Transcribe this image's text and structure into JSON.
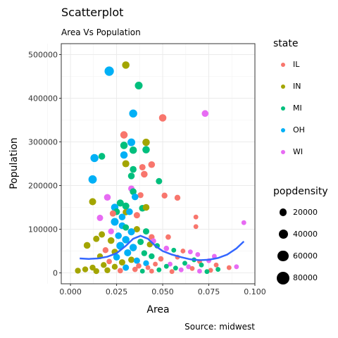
{
  "chart_data": {
    "type": "scatter",
    "title": "Scatterplot",
    "subtitle": "Area Vs Population",
    "caption": "Source: midwest",
    "xlabel": "Area",
    "ylabel": "Population",
    "xlim": [
      -0.005,
      0.1
    ],
    "ylim": [
      -25000,
      525000
    ],
    "x_ticks": [
      0.0,
      0.025,
      0.05,
      0.075,
      0.1
    ],
    "x_tick_labels": [
      "0.000",
      "0.025",
      "0.050",
      "0.075",
      "0.100"
    ],
    "y_ticks": [
      0,
      100000,
      200000,
      300000,
      400000,
      500000
    ],
    "y_tick_labels": [
      "0",
      "100000",
      "200000",
      "300000",
      "400000",
      "500000"
    ],
    "grid": true,
    "legend_position": "right",
    "color_legend": {
      "title": "state",
      "entries": [
        {
          "name": "IL",
          "color": "#F8766D"
        },
        {
          "name": "IN",
          "color": "#A3A500"
        },
        {
          "name": "MI",
          "color": "#00BF7D"
        },
        {
          "name": "OH",
          "color": "#00B0F6"
        },
        {
          "name": "WI",
          "color": "#E76BF3"
        }
      ]
    },
    "size_legend": {
      "title": "popdensity",
      "entries": [
        {
          "label": "20000",
          "value": 20000
        },
        {
          "label": "40000",
          "value": 40000
        },
        {
          "label": "60000",
          "value": 60000
        },
        {
          "label": "80000",
          "value": 80000
        }
      ]
    },
    "smooth_color": "#3366FF",
    "smooth": [
      [
        0.005,
        33000
      ],
      [
        0.01,
        32000
      ],
      [
        0.015,
        33000
      ],
      [
        0.02,
        37000
      ],
      [
        0.025,
        45000
      ],
      [
        0.03,
        62000
      ],
      [
        0.034,
        78000
      ],
      [
        0.038,
        85000
      ],
      [
        0.042,
        78000
      ],
      [
        0.046,
        62000
      ],
      [
        0.05,
        50000
      ],
      [
        0.055,
        42000
      ],
      [
        0.06,
        36000
      ],
      [
        0.065,
        31000
      ],
      [
        0.07,
        29000
      ],
      [
        0.075,
        30000
      ],
      [
        0.08,
        34000
      ],
      [
        0.085,
        42000
      ],
      [
        0.09,
        56000
      ],
      [
        0.094,
        72000
      ]
    ],
    "points": [
      {
        "state": "OH",
        "x": 0.021,
        "y": 462000,
        "density": 75000
      },
      {
        "state": "IN",
        "x": 0.03,
        "y": 476000,
        "density": 40000
      },
      {
        "state": "MI",
        "x": 0.037,
        "y": 429000,
        "density": 45000
      },
      {
        "state": "OH",
        "x": 0.034,
        "y": 365000,
        "density": 50000
      },
      {
        "state": "IL",
        "x": 0.05,
        "y": 355000,
        "density": 40000
      },
      {
        "state": "WI",
        "x": 0.073,
        "y": 365000,
        "density": 30000
      },
      {
        "state": "IL",
        "x": 0.029,
        "y": 316000,
        "density": 40000
      },
      {
        "state": "IN",
        "x": 0.041,
        "y": 299000,
        "density": 40000
      },
      {
        "state": "OH",
        "x": 0.033,
        "y": 299000,
        "density": 45000
      },
      {
        "state": "MI",
        "x": 0.029,
        "y": 292000,
        "density": 40000
      },
      {
        "state": "MI",
        "x": 0.041,
        "y": 282000,
        "density": 40000
      },
      {
        "state": "MI",
        "x": 0.034,
        "y": 281000,
        "density": 40000
      },
      {
        "state": "OH",
        "x": 0.029,
        "y": 270000,
        "density": 40000
      },
      {
        "state": "OH",
        "x": 0.013,
        "y": 263000,
        "density": 50000
      },
      {
        "state": "MI",
        "x": 0.017,
        "y": 267000,
        "density": 30000
      },
      {
        "state": "IN",
        "x": 0.03,
        "y": 250000,
        "density": 35000
      },
      {
        "state": "IL",
        "x": 0.044,
        "y": 248000,
        "density": 30000
      },
      {
        "state": "IL",
        "x": 0.039,
        "y": 242000,
        "density": 25000
      },
      {
        "state": "MI",
        "x": 0.034,
        "y": 237000,
        "density": 30000
      },
      {
        "state": "IL",
        "x": 0.04,
        "y": 226000,
        "density": 30000
      },
      {
        "state": "MI",
        "x": 0.033,
        "y": 222000,
        "density": 30000
      },
      {
        "state": "OH",
        "x": 0.012,
        "y": 214000,
        "density": 55000
      },
      {
        "state": "MI",
        "x": 0.048,
        "y": 210000,
        "density": 25000
      },
      {
        "state": "WI",
        "x": 0.033,
        "y": 193000,
        "density": 25000
      },
      {
        "state": "MI",
        "x": 0.034,
        "y": 186000,
        "density": 30000
      },
      {
        "state": "IL",
        "x": 0.051,
        "y": 177000,
        "density": 20000
      },
      {
        "state": "IL",
        "x": 0.058,
        "y": 172000,
        "density": 20000
      },
      {
        "state": "WI",
        "x": 0.02,
        "y": 173000,
        "density": 30000
      },
      {
        "state": "IL",
        "x": 0.038,
        "y": 178000,
        "density": 20000
      },
      {
        "state": "OH",
        "x": 0.035,
        "y": 174000,
        "density": 30000
      },
      {
        "state": "IN",
        "x": 0.012,
        "y": 163000,
        "density": 35000
      },
      {
        "state": "MI",
        "x": 0.027,
        "y": 160000,
        "density": 35000
      },
      {
        "state": "MI",
        "x": 0.03,
        "y": 153000,
        "density": 35000
      },
      {
        "state": "MI",
        "x": 0.039,
        "y": 148000,
        "density": 30000
      },
      {
        "state": "IN",
        "x": 0.041,
        "y": 150000,
        "density": 30000
      },
      {
        "state": "OH",
        "x": 0.024,
        "y": 150000,
        "density": 40000
      },
      {
        "state": "MI",
        "x": 0.025,
        "y": 140000,
        "density": 30000
      },
      {
        "state": "IN",
        "x": 0.03,
        "y": 139000,
        "density": 25000
      },
      {
        "state": "OH",
        "x": 0.032,
        "y": 140000,
        "density": 30000
      },
      {
        "state": "IL",
        "x": 0.023,
        "y": 136000,
        "density": 25000
      },
      {
        "state": "WI",
        "x": 0.016,
        "y": 126000,
        "density": 25000
      },
      {
        "state": "OH",
        "x": 0.028,
        "y": 128000,
        "density": 30000
      },
      {
        "state": "IL",
        "x": 0.036,
        "y": 132000,
        "density": 25000
      },
      {
        "state": "OH",
        "x": 0.024,
        "y": 117000,
        "density": 45000
      },
      {
        "state": "IL",
        "x": 0.068,
        "y": 128000,
        "density": 10000
      },
      {
        "state": "IL",
        "x": 0.068,
        "y": 106000,
        "density": 10000
      },
      {
        "state": "WI",
        "x": 0.094,
        "y": 115000,
        "density": 10000
      },
      {
        "state": "OH",
        "x": 0.028,
        "y": 108000,
        "density": 30000
      },
      {
        "state": "MI",
        "x": 0.03,
        "y": 104000,
        "density": 25000
      },
      {
        "state": "IN",
        "x": 0.017,
        "y": 88000,
        "density": 25000
      },
      {
        "state": "WI",
        "x": 0.022,
        "y": 95000,
        "density": 20000
      },
      {
        "state": "IN",
        "x": 0.036,
        "y": 100000,
        "density": 25000
      },
      {
        "state": "OH",
        "x": 0.033,
        "y": 94000,
        "density": 35000
      },
      {
        "state": "MI",
        "x": 0.041,
        "y": 95000,
        "density": 25000
      },
      {
        "state": "IN",
        "x": 0.022,
        "y": 74000,
        "density": 30000
      },
      {
        "state": "OH",
        "x": 0.026,
        "y": 85000,
        "density": 30000
      },
      {
        "state": "IL",
        "x": 0.044,
        "y": 82000,
        "density": 20000
      },
      {
        "state": "IL",
        "x": 0.053,
        "y": 82000,
        "density": 15000
      },
      {
        "state": "IN",
        "x": 0.014,
        "y": 78000,
        "density": 25000
      },
      {
        "state": "IN",
        "x": 0.009,
        "y": 63000,
        "density": 30000
      },
      {
        "state": "OH",
        "x": 0.03,
        "y": 76000,
        "density": 40000
      },
      {
        "state": "MI",
        "x": 0.038,
        "y": 71000,
        "density": 25000
      },
      {
        "state": "WI",
        "x": 0.045,
        "y": 73000,
        "density": 15000
      },
      {
        "state": "OH",
        "x": 0.027,
        "y": 62000,
        "density": 45000
      },
      {
        "state": "IN",
        "x": 0.043,
        "y": 65000,
        "density": 20000
      },
      {
        "state": "MI",
        "x": 0.047,
        "y": 62000,
        "density": 15000
      },
      {
        "state": "OH",
        "x": 0.034,
        "y": 58000,
        "density": 40000
      },
      {
        "state": "IL",
        "x": 0.019,
        "y": 52000,
        "density": 20000
      },
      {
        "state": "WI",
        "x": 0.052,
        "y": 56000,
        "density": 15000
      },
      {
        "state": "MI",
        "x": 0.056,
        "y": 52000,
        "density": 10000
      },
      {
        "state": "IL",
        "x": 0.061,
        "y": 50000,
        "density": 10000
      },
      {
        "state": "WI",
        "x": 0.065,
        "y": 48000,
        "density": 10000
      },
      {
        "state": "IN",
        "x": 0.024,
        "y": 48000,
        "density": 25000
      },
      {
        "state": "OH",
        "x": 0.031,
        "y": 46000,
        "density": 35000
      },
      {
        "state": "MI",
        "x": 0.04,
        "y": 45000,
        "density": 20000
      },
      {
        "state": "WI",
        "x": 0.069,
        "y": 42000,
        "density": 10000
      },
      {
        "state": "MI",
        "x": 0.044,
        "y": 38000,
        "density": 20000
      },
      {
        "state": "IL",
        "x": 0.058,
        "y": 36000,
        "density": 10000
      },
      {
        "state": "IN",
        "x": 0.016,
        "y": 38000,
        "density": 20000
      },
      {
        "state": "OH",
        "x": 0.025,
        "y": 36000,
        "density": 30000
      },
      {
        "state": "WI",
        "x": 0.078,
        "y": 38000,
        "density": 10000
      },
      {
        "state": "IL",
        "x": 0.049,
        "y": 32000,
        "density": 15000
      },
      {
        "state": "MI",
        "x": 0.067,
        "y": 30000,
        "density": 10000
      },
      {
        "state": "IN",
        "x": 0.033,
        "y": 30000,
        "density": 25000
      },
      {
        "state": "OH",
        "x": 0.036,
        "y": 28000,
        "density": 25000
      },
      {
        "state": "IL",
        "x": 0.07,
        "y": 26000,
        "density": 10000
      },
      {
        "state": "WI",
        "x": 0.075,
        "y": 28000,
        "density": 10000
      },
      {
        "state": "IL",
        "x": 0.021,
        "y": 26000,
        "density": 15000
      },
      {
        "state": "MI",
        "x": 0.062,
        "y": 22000,
        "density": 10000
      },
      {
        "state": "IN",
        "x": 0.028,
        "y": 24000,
        "density": 25000
      },
      {
        "state": "OH",
        "x": 0.041,
        "y": 22000,
        "density": 20000
      },
      {
        "state": "IL",
        "x": 0.046,
        "y": 20000,
        "density": 10000
      },
      {
        "state": "WI",
        "x": 0.054,
        "y": 20000,
        "density": 10000
      },
      {
        "state": "MI",
        "x": 0.071,
        "y": 18000,
        "density": 10000
      },
      {
        "state": "IL",
        "x": 0.079,
        "y": 18000,
        "density": 10000
      },
      {
        "state": "IN",
        "x": 0.018,
        "y": 18000,
        "density": 20000
      },
      {
        "state": "IL",
        "x": 0.037,
        "y": 16000,
        "density": 15000
      },
      {
        "state": "MI",
        "x": 0.052,
        "y": 15000,
        "density": 10000
      },
      {
        "state": "WI",
        "x": 0.064,
        "y": 14000,
        "density": 10000
      },
      {
        "state": "IN",
        "x": 0.024,
        "y": 14000,
        "density": 20000
      },
      {
        "state": "OH",
        "x": 0.03,
        "y": 12000,
        "density": 25000
      },
      {
        "state": "IL",
        "x": 0.042,
        "y": 12000,
        "density": 10000
      },
      {
        "state": "MI",
        "x": 0.057,
        "y": 11000,
        "density": 10000
      },
      {
        "state": "IL",
        "x": 0.066,
        "y": 10000,
        "density": 10000
      },
      {
        "state": "IL",
        "x": 0.086,
        "y": 12000,
        "density": 10000
      },
      {
        "state": "WI",
        "x": 0.09,
        "y": 14000,
        "density": 10000
      },
      {
        "state": "IN",
        "x": 0.012,
        "y": 12000,
        "density": 20000
      },
      {
        "state": "IN",
        "x": 0.008,
        "y": 8000,
        "density": 20000
      },
      {
        "state": "IL",
        "x": 0.035,
        "y": 8000,
        "density": 15000
      },
      {
        "state": "MI",
        "x": 0.048,
        "y": 7000,
        "density": 10000
      },
      {
        "state": "WI",
        "x": 0.06,
        "y": 7000,
        "density": 10000
      },
      {
        "state": "IL",
        "x": 0.076,
        "y": 6000,
        "density": 10000
      },
      {
        "state": "MI",
        "x": 0.08,
        "y": 8000,
        "density": 10000
      },
      {
        "state": "IN",
        "x": 0.004,
        "y": 5000,
        "density": 20000
      },
      {
        "state": "IN",
        "x": 0.02,
        "y": 6000,
        "density": 20000
      },
      {
        "state": "IL",
        "x": 0.027,
        "y": 5000,
        "density": 15000
      },
      {
        "state": "MI",
        "x": 0.039,
        "y": 4000,
        "density": 10000
      },
      {
        "state": "IL",
        "x": 0.044,
        "y": 4000,
        "density": 10000
      },
      {
        "state": "WI",
        "x": 0.07,
        "y": 4000,
        "density": 10000
      },
      {
        "state": "IL",
        "x": 0.055,
        "y": 3000,
        "density": 10000
      },
      {
        "state": "IN",
        "x": 0.014,
        "y": 4000,
        "density": 20000
      },
      {
        "state": "MI",
        "x": 0.074,
        "y": 3000,
        "density": 10000
      }
    ]
  }
}
